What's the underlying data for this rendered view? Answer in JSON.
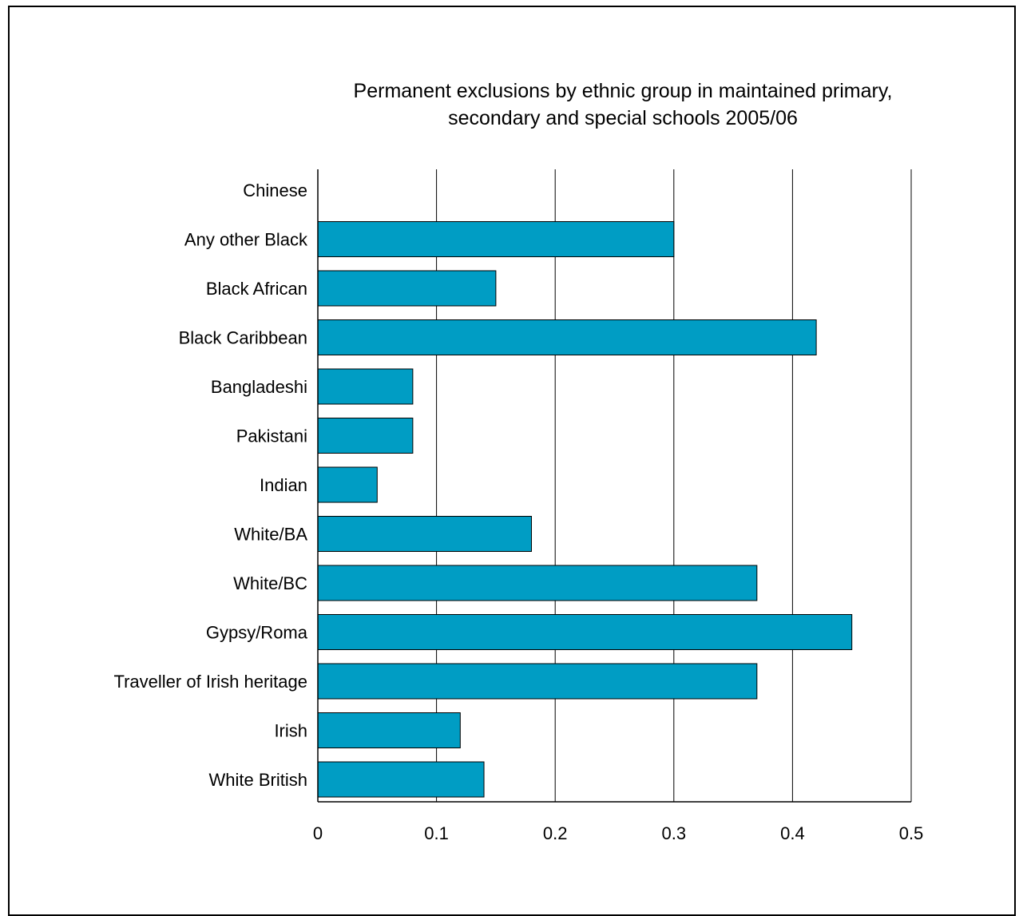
{
  "chart_data": {
    "type": "bar",
    "orientation": "horizontal",
    "title_lines": [
      "Permanent exclusions by ethnic group in maintained primary,",
      "secondary and special schools 2005/06"
    ],
    "categories": [
      "Chinese",
      "Any other Black",
      "Black African",
      "Black Caribbean",
      "Bangladeshi",
      "Pakistani",
      "Indian",
      "White/BA",
      "White/BC",
      "Gypsy/Roma",
      "Traveller of Irish heritage",
      "Irish",
      "White British"
    ],
    "values": [
      0,
      0.3,
      0.15,
      0.42,
      0.08,
      0.08,
      0.05,
      0.18,
      0.37,
      0.45,
      0.37,
      0.12,
      0.14
    ],
    "xlim": [
      0,
      0.5
    ],
    "xticks": [
      0,
      0.1,
      0.2,
      0.3,
      0.4,
      0.5
    ],
    "xtick_labels": [
      "0",
      "0.1",
      "0.2",
      "0.3",
      "0.4",
      "0.5"
    ],
    "grid": "vertical",
    "legend": "none",
    "bar_color": "#009dc4",
    "bar_edge_color": "#000000"
  }
}
